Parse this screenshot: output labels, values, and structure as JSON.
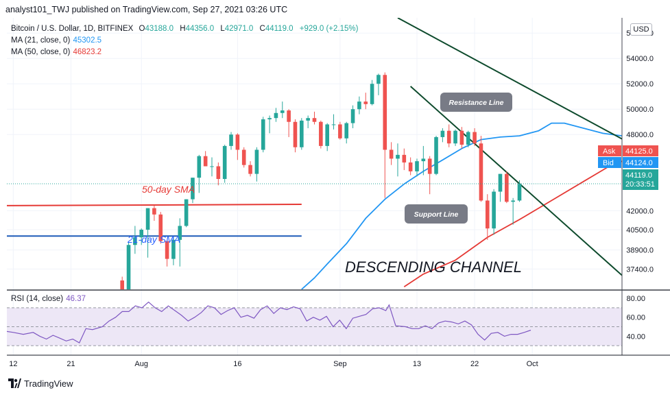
{
  "header": {
    "publisher_line": "analyst101_TWJ published on TradingView.com, Sep 27, 2021 03:26 UTC"
  },
  "legend": {
    "symbol": "Bitcoin / U.S. Dollar, 1D, BITFINEX",
    "open_label": "O",
    "open": "43188.0",
    "high_label": "H",
    "high": "44356.0",
    "low_label": "L",
    "low": "42971.0",
    "close_label": "C",
    "close": "44119.0",
    "change": "+929.0 (+2.15%)",
    "ma21_label": "MA (21, close, 0)",
    "ma21_value": "45302.5",
    "ma50_label": "MA (50, close, 0)",
    "ma50_value": "46823.2",
    "rsi_label": "RSI (14, close)",
    "rsi_value": "46.37"
  },
  "currency_button": "USD",
  "price_tags": {
    "ask_label": "Ask",
    "ask_value": "44125.0",
    "bid_label": "Bid",
    "bid_value": "44124.0",
    "last_value": "44119.0",
    "countdown": "20:33:51"
  },
  "annotations": {
    "resistance": "Resistance Line",
    "support": "Support Line",
    "channel": "DESCENDING CHANNEL",
    "sma50": "50-day SMA",
    "ma21": "21-day SMA"
  },
  "footer": {
    "brand": "TradingView"
  },
  "colors": {
    "up": "#26a69a",
    "down": "#ef5350",
    "ma21": "#2196f3",
    "ma50": "#e53935",
    "rsi": "#7e57c2",
    "rsi_band": "#ede7f6",
    "channel": "#0d4a2c",
    "ask": "#ef5350",
    "bid": "#2196f3",
    "last": "#26a69a"
  },
  "chart_data": [
    {
      "type": "candlestick",
      "symbol": "BTCUSD",
      "interval": "1D",
      "y_ticks": [
        "56000.0",
        "54000.0",
        "52000.0",
        "50000.0",
        "48000.0",
        "42000.0",
        "40500.0",
        "38900.0",
        "37400.0"
      ],
      "ylim": [
        35800,
        57200
      ],
      "x_ticks": [
        "12",
        "21",
        "Aug",
        "16",
        "Sep",
        "13",
        "22",
        "Oct"
      ],
      "x_tick_days": [
        -19,
        -10,
        1,
        16,
        32,
        44,
        53,
        62
      ],
      "xlim_days": [
        -20,
        76
      ],
      "day_zero": "Jul 31",
      "grid": true,
      "candles": [
        [
          26,
          36500,
          36800,
          34800,
          35200
        ],
        [
          27,
          35200,
          39500,
          35100,
          39300
        ],
        [
          28,
          39300,
          40800,
          38600,
          39900
        ],
        [
          29,
          39900,
          40600,
          39300,
          40500
        ],
        [
          30,
          40500,
          42200,
          38300,
          42200
        ],
        [
          31,
          42200,
          42400,
          41200,
          41700
        ],
        [
          32,
          41700,
          41900,
          39400,
          39600
        ],
        [
          33,
          39600,
          39700,
          37600,
          38200
        ],
        [
          34,
          38200,
          39900,
          37700,
          39700
        ],
        [
          35,
          39700,
          41400,
          37600,
          40800
        ],
        [
          36,
          40800,
          42900,
          40700,
          42900
        ],
        [
          37,
          42900,
          44600,
          42600,
          44600
        ],
        [
          38,
          44600,
          46400,
          43400,
          46300
        ],
        [
          39,
          46300,
          46700,
          45500,
          45500
        ],
        [
          40,
          45500,
          46200,
          44700,
          45500
        ],
        [
          41,
          45500,
          45800,
          44000,
          44500
        ],
        [
          42,
          44500,
          47200,
          44200,
          47100
        ],
        [
          43,
          47100,
          48200,
          46800,
          48000
        ],
        [
          44,
          48000,
          48100,
          46000,
          46800
        ],
        [
          45,
          46800,
          47000,
          45400,
          45600
        ],
        [
          46,
          45600,
          45900,
          44700,
          44900
        ],
        [
          47,
          44900,
          47000,
          44300,
          46800
        ],
        [
          48,
          46800,
          49400,
          46600,
          49200
        ],
        [
          49,
          49200,
          49500,
          48100,
          49300
        ],
        [
          50,
          49300,
          50100,
          49000,
          49700
        ],
        [
          51,
          49700,
          50600,
          49300,
          49900
        ],
        [
          52,
          49900,
          50000,
          47800,
          49000
        ],
        [
          53,
          49000,
          49200,
          46600,
          47000
        ],
        [
          54,
          47000,
          49300,
          46800,
          49100
        ],
        [
          55,
          49100,
          49500,
          48500,
          49300
        ],
        [
          56,
          49300,
          49800,
          48800,
          49000
        ],
        [
          57,
          49000,
          49100,
          46900,
          47100
        ],
        [
          58,
          47100,
          48900,
          46700,
          48800
        ],
        [
          59,
          48800,
          49600,
          48400,
          48800
        ],
        [
          60,
          48800,
          49000,
          47600,
          47700
        ],
        [
          61,
          47700,
          49000,
          47300,
          48900
        ],
        [
          62,
          48900,
          50300,
          48500,
          50000
        ],
        [
          63,
          50000,
          51000,
          49600,
          50600
        ],
        [
          64,
          50600,
          51300,
          50000,
          50400
        ],
        [
          65,
          50400,
          52300,
          50300,
          52000
        ],
        [
          66,
          52000,
          52800,
          51100,
          52700
        ],
        [
          67,
          52700,
          52900,
          43000,
          46800
        ],
        [
          68,
          46800,
          47400,
          45600,
          46100
        ],
        [
          69,
          46100,
          47300,
          44700,
          46400
        ],
        [
          70,
          46400,
          46900,
          45200,
          45800
        ],
        [
          71,
          45800,
          46200,
          44800,
          45100
        ],
        [
          72,
          45100,
          46100,
          44700,
          45900
        ],
        [
          73,
          45900,
          47100,
          44800,
          46100
        ],
        [
          74,
          46100,
          46300,
          43300,
          44900
        ],
        [
          75,
          44900,
          47900,
          44800,
          47800
        ],
        [
          76,
          47800,
          48500,
          47400,
          48300
        ],
        [
          77,
          48300,
          48800,
          47000,
          47300
        ],
        [
          78,
          47300,
          48400,
          47100,
          48300
        ],
        [
          79,
          48300,
          48600,
          46900,
          47200
        ],
        [
          80,
          47200,
          48300,
          47000,
          48200
        ],
        [
          81,
          48200,
          48500,
          47100,
          47300
        ],
        [
          82,
          47300,
          47900,
          42700,
          42800
        ],
        [
          83,
          42800,
          43300,
          39700,
          40600
        ],
        [
          84,
          40600,
          43700,
          40100,
          43500
        ],
        [
          85,
          43500,
          44900,
          42700,
          44900
        ],
        [
          86,
          44900,
          45100,
          42600,
          42700
        ],
        [
          87,
          42700,
          43000,
          40900,
          42800
        ],
        [
          88,
          42800,
          44400,
          42700,
          44100
        ]
      ],
      "ma21_points": [
        [
          26,
          35800
        ],
        [
          28,
          36700
        ],
        [
          30,
          37800
        ],
        [
          33,
          39400
        ],
        [
          36,
          41400
        ],
        [
          39,
          42900
        ],
        [
          42,
          44100
        ],
        [
          45,
          45100
        ],
        [
          48,
          46000
        ],
        [
          51,
          46900
        ],
        [
          54,
          47600
        ],
        [
          57,
          47800
        ],
        [
          60,
          47900
        ],
        [
          63,
          48300
        ],
        [
          65,
          48900
        ],
        [
          67,
          48900
        ],
        [
          70,
          48500
        ],
        [
          73,
          48100
        ],
        [
          76,
          47900
        ],
        [
          79,
          47800
        ],
        [
          82,
          47600
        ],
        [
          85,
          46800
        ],
        [
          88,
          45300
        ]
      ],
      "ma50_points": [
        [
          -20,
          42400
        ],
        [
          26,
          42500
        ],
        [
          42,
          36000
        ],
        [
          45,
          37000
        ],
        [
          50,
          38100
        ],
        [
          55,
          39900
        ],
        [
          60,
          41300
        ],
        [
          65,
          42800
        ],
        [
          70,
          44300
        ],
        [
          74,
          45500
        ],
        [
          78,
          46300
        ],
        [
          82,
          46800
        ],
        [
          86,
          46900
        ],
        [
          89,
          46800
        ]
      ],
      "old_ma21_points": [
        [
          -20,
          40000
        ],
        [
          26,
          40000
        ]
      ],
      "resistance_line": [
        [
          41,
          57200
        ],
        [
          96,
          42200
        ]
      ],
      "support_line": [
        [
          43,
          51800
        ],
        [
          78,
          36000
        ]
      ]
    },
    {
      "type": "line",
      "title": "RSI (14, close)",
      "y_ticks": [
        "80.00",
        "60.00",
        "40.00"
      ],
      "ylim": [
        20,
        88
      ],
      "band": [
        30,
        70
      ],
      "grid": true,
      "points": [
        [
          -20,
          45
        ],
        [
          -18,
          44
        ],
        [
          -15,
          42
        ],
        [
          -12,
          44
        ],
        [
          -10,
          40
        ],
        [
          -8,
          37
        ],
        [
          -6,
          41
        ],
        [
          -4,
          38
        ],
        [
          -2,
          35
        ],
        [
          0,
          37
        ],
        [
          2,
          33
        ],
        [
          4,
          48
        ],
        [
          6,
          47
        ],
        [
          9,
          50
        ],
        [
          11,
          56
        ],
        [
          13,
          60
        ],
        [
          15,
          66
        ],
        [
          17,
          66
        ],
        [
          19,
          72
        ],
        [
          21,
          70
        ],
        [
          23,
          76
        ],
        [
          25,
          70
        ],
        [
          27,
          66
        ],
        [
          29,
          72
        ],
        [
          31,
          67
        ],
        [
          33,
          62
        ],
        [
          35,
          56
        ],
        [
          37,
          60
        ],
        [
          39,
          65
        ],
        [
          41,
          72
        ],
        [
          43,
          70
        ],
        [
          45,
          63
        ],
        [
          47,
          67
        ],
        [
          49,
          70
        ],
        [
          51,
          60
        ],
        [
          53,
          62
        ],
        [
          55,
          59
        ],
        [
          57,
          68
        ],
        [
          59,
          72
        ],
        [
          61,
          64
        ],
        [
          63,
          70
        ],
        [
          65,
          68
        ],
        [
          67,
          71
        ],
        [
          69,
          69
        ],
        [
          71,
          56
        ],
        [
          73,
          60
        ],
        [
          75,
          57
        ],
        [
          77,
          61
        ],
        [
          79,
          50
        ],
        [
          81,
          57
        ],
        [
          83,
          48
        ],
        [
          85,
          59
        ],
        [
          87,
          61
        ],
        [
          89,
          63
        ],
        [
          91,
          69
        ],
        [
          93,
          70
        ],
        [
          95,
          67
        ],
        [
          96,
          73
        ],
        [
          98,
          51
        ],
        [
          101,
          50
        ],
        [
          103,
          48
        ],
        [
          105,
          48
        ],
        [
          107,
          51
        ],
        [
          109,
          48
        ],
        [
          111,
          54
        ],
        [
          113,
          56
        ],
        [
          115,
          55
        ],
        [
          117,
          53
        ],
        [
          119,
          56
        ],
        [
          121,
          52
        ],
        [
          123,
          42
        ],
        [
          125,
          36
        ],
        [
          127,
          43
        ],
        [
          129,
          44
        ],
        [
          131,
          40
        ],
        [
          133,
          42
        ],
        [
          135,
          42
        ],
        [
          137,
          44
        ],
        [
          139,
          46.4
        ]
      ],
      "x_ticks": [
        "12",
        "21",
        "Aug",
        "16",
        "Sep",
        "13",
        "22",
        "Oct"
      ]
    }
  ]
}
